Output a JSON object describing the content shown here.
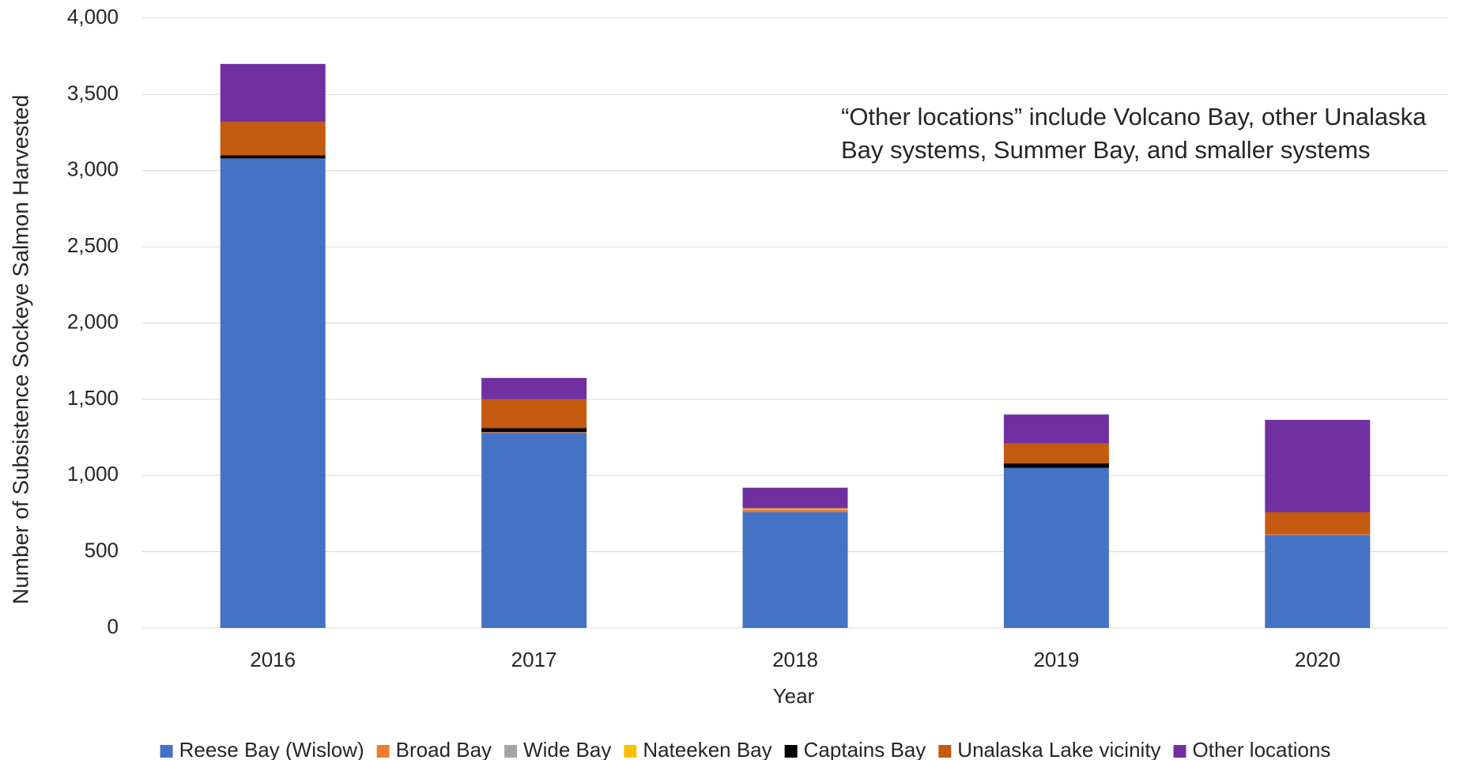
{
  "chart_data": {
    "type": "stacked_bar",
    "annotation": [
      "“Other locations” include Volcano Bay, other Unalaska",
      "Bay systems, Summer Bay, and smaller systems"
    ],
    "x_label": "Year",
    "y_label": "Number of Subsistence Sockeye Salmon Harvested",
    "categories": [
      "2016",
      "2017",
      "2018",
      "2019",
      "2020"
    ],
    "series": [
      {
        "name": "Reese Bay (Wislow)",
        "color": "#4472c4",
        "values": [
          3080,
          1280,
          760,
          1050,
          610
        ]
      },
      {
        "name": "Broad Bay",
        "color": "#ed7d31",
        "values": [
          0,
          5,
          15,
          0,
          5
        ]
      },
      {
        "name": "Wide Bay",
        "color": "#a5a5a5",
        "values": [
          0,
          0,
          5,
          0,
          0
        ]
      },
      {
        "name": "Nateeken Bay",
        "color": "#ffc000",
        "values": [
          0,
          0,
          5,
          0,
          0
        ]
      },
      {
        "name": "Captains Bay",
        "color": "#000000",
        "values": [
          20,
          25,
          0,
          30,
          0
        ]
      },
      {
        "name": "Unalaska Lake vicinity",
        "color": "#c55a11",
        "values": [
          220,
          190,
          0,
          130,
          145
        ]
      },
      {
        "name": "Other locations",
        "color": "#7030a0",
        "values": [
          380,
          140,
          135,
          190,
          605
        ]
      }
    ],
    "ylim": [
      0,
      4000
    ],
    "yticks": [
      0,
      500,
      {
        "value": 1000,
        "label": "1,000"
      },
      {
        "value": 1500,
        "label": "1,500"
      },
      {
        "value": 2000,
        "label": "2,000"
      },
      {
        "value": 2500,
        "label": "2,500"
      },
      {
        "value": 3000,
        "label": "3,000"
      },
      {
        "value": 3500,
        "label": "3,500"
      },
      {
        "value": 4000,
        "label": "4,000"
      }
    ],
    "grid": true,
    "legend": "bottom"
  }
}
